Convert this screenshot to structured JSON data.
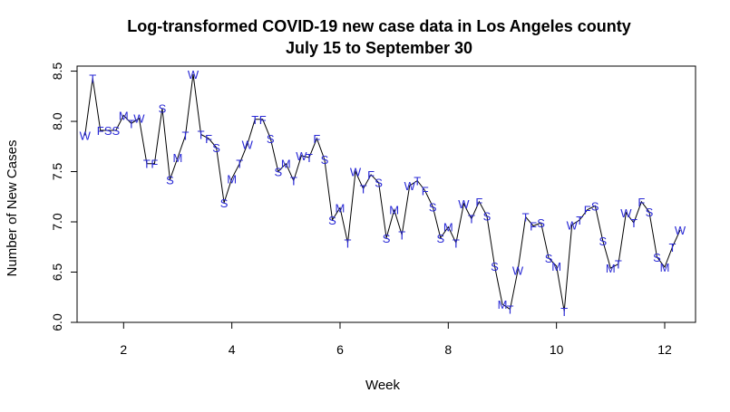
{
  "chart_data": {
    "type": "line",
    "title": "Log-transformed COVID-19 new case data in Los Angeles county",
    "subtitle": "July 15 to September 30",
    "xlabel": "Week",
    "ylabel": "Number of New Cases",
    "xlim": [
      1.14,
      12.57
    ],
    "ylim": [
      6.0,
      8.55
    ],
    "x_ticks": [
      2,
      4,
      6,
      8,
      10,
      12
    ],
    "y_ticks": [
      6.0,
      6.5,
      7.0,
      7.5,
      8.0,
      8.5
    ],
    "x_tick_labels": [
      "2",
      "4",
      "6",
      "8",
      "10",
      "12"
    ],
    "y_tick_labels": [
      "6.0",
      "6.5",
      "7.0",
      "7.5",
      "8.0",
      "8.5"
    ],
    "grid": false,
    "legend": "none",
    "line_color": "#000000",
    "label_color": "#2a2ad6",
    "series": [
      {
        "x": [
          1.286,
          1.429,
          1.571,
          1.714,
          1.857,
          2.0,
          2.143,
          2.286,
          2.429,
          2.571,
          2.714,
          2.857,
          3.0,
          3.143,
          3.286,
          3.429,
          3.571,
          3.714,
          3.857,
          4.0,
          4.143,
          4.286,
          4.429,
          4.571,
          4.714,
          4.857,
          5.0,
          5.143,
          5.286,
          5.429,
          5.571,
          5.714,
          5.857,
          6.0,
          6.143,
          6.286,
          6.429,
          6.571,
          6.714,
          6.857,
          7.0,
          7.143,
          7.286,
          7.429,
          7.571,
          7.714,
          7.857,
          8.0,
          8.143,
          8.286,
          8.429,
          8.571,
          8.714,
          8.857,
          9.0,
          9.143,
          9.286,
          9.429,
          9.571,
          9.714,
          9.857,
          10.0,
          10.143,
          10.286,
          10.429,
          10.571,
          10.714,
          10.857,
          11.0,
          11.143,
          11.286,
          11.429,
          11.571,
          11.714,
          11.857,
          12.0,
          12.143,
          12.286
        ],
        "y": [
          7.86,
          8.43,
          7.91,
          7.91,
          7.91,
          8.06,
          7.98,
          8.03,
          7.58,
          7.58,
          8.13,
          7.42,
          7.64,
          7.86,
          8.47,
          7.87,
          7.83,
          7.74,
          7.19,
          7.43,
          7.58,
          7.77,
          8.02,
          8.02,
          7.83,
          7.5,
          7.58,
          7.41,
          7.66,
          7.64,
          7.83,
          7.62,
          7.02,
          7.14,
          6.79,
          7.5,
          7.33,
          7.47,
          7.39,
          6.84,
          7.12,
          6.87,
          7.36,
          7.41,
          7.31,
          7.15,
          6.84,
          6.95,
          6.79,
          7.18,
          7.03,
          7.2,
          7.06,
          6.56,
          6.18,
          6.13,
          6.52,
          7.05,
          6.96,
          6.99,
          6.64,
          6.56,
          6.11,
          6.97,
          7.02,
          7.12,
          7.16,
          6.81,
          6.54,
          6.58,
          7.09,
          6.99,
          7.2,
          7.1,
          6.65,
          6.55,
          6.75,
          6.92
        ],
        "labels": [
          "W",
          "T",
          "F",
          "S",
          "S",
          "M",
          "T",
          "W",
          "T",
          "F",
          "S",
          "S",
          "M",
          "T",
          "W",
          "T",
          "F",
          "S",
          "S",
          "M",
          "T",
          "W",
          "T",
          "F",
          "S",
          "S",
          "M",
          "T",
          "W",
          "T",
          "F",
          "S",
          "S",
          "M",
          "T",
          "W",
          "T",
          "F",
          "S",
          "S",
          "M",
          "T",
          "W",
          "T",
          "F",
          "S",
          "S",
          "M",
          "T",
          "W",
          "T",
          "F",
          "S",
          "S",
          "M",
          "T",
          "W",
          "T",
          "F",
          "S",
          "S",
          "M",
          "T",
          "W",
          "T",
          "F",
          "S",
          "S",
          "M",
          "T",
          "W",
          "T",
          "F",
          "S",
          "S",
          "M",
          "T",
          "W"
        ]
      }
    ]
  }
}
